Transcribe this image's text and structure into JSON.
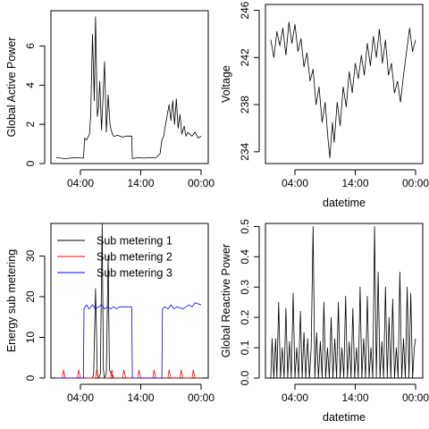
{
  "chart_data": [
    {
      "type": "line",
      "ylabel": "Global Active Power",
      "xlabel": "",
      "x_ticks": [
        "04:00",
        "14:00",
        "00:00"
      ],
      "y_ticks": [
        "0",
        "2",
        "4",
        "6"
      ],
      "ylim": [
        0,
        7.8
      ],
      "series": [
        {
          "color": "#000000",
          "x": [
            0.0,
            1.5,
            3.0,
            4.5,
            4.7,
            5.0,
            5.5,
            5.7,
            6.0,
            6.3,
            6.5,
            6.8,
            7.0,
            7.2,
            7.5,
            7.8,
            8.0,
            8.3,
            8.6,
            8.9,
            9.1,
            9.3,
            9.5,
            9.8,
            10.1,
            10.5,
            11.0,
            11.5,
            12.0,
            12.5,
            12.6,
            13.5,
            14.5,
            15.5,
            16.5,
            17.2,
            17.5,
            17.8,
            18.0,
            18.4,
            18.7,
            19.0,
            19.3,
            19.6,
            19.9,
            20.2,
            20.5,
            20.8,
            21.2,
            21.5,
            21.8,
            22.1,
            22.5,
            23.0,
            23.5,
            24.0
          ],
          "values": [
            0.3,
            0.25,
            0.3,
            0.28,
            1.3,
            1.2,
            1.5,
            2.5,
            6.6,
            3.2,
            7.5,
            2.4,
            2.9,
            4.2,
            1.7,
            3.8,
            5.2,
            1.6,
            3.5,
            2.0,
            1.7,
            1.5,
            1.4,
            1.4,
            1.45,
            1.4,
            1.35,
            1.4,
            1.4,
            1.4,
            0.25,
            0.3,
            0.28,
            0.3,
            0.3,
            0.5,
            1.2,
            1.4,
            1.8,
            2.5,
            3.0,
            2.2,
            3.2,
            2.0,
            3.3,
            1.8,
            2.5,
            1.5,
            1.9,
            1.4,
            1.6,
            1.5,
            1.4,
            1.6,
            1.3,
            1.4
          ]
        }
      ]
    },
    {
      "type": "line",
      "ylabel": "Voltage",
      "xlabel": "datetime",
      "x_ticks": [
        "04:00",
        "14:00",
        "00:00"
      ],
      "y_ticks": [
        "234",
        "238",
        "242",
        "246"
      ],
      "ylim": [
        233,
        246.5
      ],
      "series": [
        {
          "color": "#000000",
          "x": [
            0.0,
            0.5,
            1.0,
            1.5,
            2.0,
            2.5,
            3.0,
            3.5,
            4.0,
            4.5,
            5.0,
            5.5,
            6.0,
            6.5,
            7.0,
            7.5,
            8.0,
            8.5,
            9.0,
            9.5,
            9.8,
            10.2,
            10.5,
            11.0,
            11.5,
            12.0,
            12.5,
            13.0,
            13.5,
            14.0,
            14.5,
            15.0,
            15.5,
            16.0,
            16.5,
            17.0,
            17.5,
            18.0,
            18.5,
            19.0,
            19.5,
            20.0,
            20.5,
            21.0,
            21.5,
            22.0,
            22.5,
            23.0,
            23.5,
            24.0
          ],
          "values": [
            243.5,
            242.0,
            244.2,
            243.0,
            244.5,
            242.2,
            245.0,
            243.2,
            244.8,
            242.5,
            243.6,
            241.2,
            242.4,
            240.0,
            241.0,
            238.0,
            239.5,
            236.5,
            238.2,
            235.0,
            233.5,
            236.5,
            234.8,
            238.2,
            236.2,
            239.5,
            237.8,
            240.8,
            239.0,
            241.5,
            240.2,
            242.2,
            240.5,
            243.2,
            241.3,
            243.8,
            242.0,
            244.4,
            241.5,
            243.5,
            240.5,
            241.5,
            239.0,
            240.0,
            238.2,
            240.5,
            242.5,
            244.5,
            242.5,
            243.5
          ]
        }
      ]
    },
    {
      "type": "line",
      "ylabel": "Energy sub metering",
      "xlabel": "",
      "x_ticks": [
        "04:00",
        "14:00",
        "00:00"
      ],
      "y_ticks": [
        "0",
        "10",
        "20",
        "30"
      ],
      "ylim": [
        0,
        38
      ],
      "legend": {
        "placement": "top-left",
        "entries": [
          "Sub metering 1",
          "Sub metering 2",
          "Sub metering 3"
        ]
      },
      "series": [
        {
          "name": "Sub metering 1",
          "color": "#000000",
          "x": [
            0.0,
            6.0,
            6.2,
            6.5,
            6.8,
            7.0,
            7.3,
            7.6,
            7.8,
            8.0,
            8.3,
            8.6,
            8.8,
            9.1,
            9.5,
            24.0
          ],
          "values": [
            0,
            0,
            1,
            22,
            1,
            0,
            1,
            38,
            2,
            0,
            1,
            30,
            2,
            1,
            0,
            0
          ]
        },
        {
          "name": "Sub metering 2",
          "color": "#ff0000",
          "x": [
            0.0,
            1.0,
            1.2,
            1.5,
            3.5,
            3.7,
            4.0,
            6.5,
            6.7,
            7.0,
            9.0,
            9.2,
            9.5,
            11.0,
            11.2,
            11.5,
            13.5,
            13.7,
            14.0,
            16.0,
            16.2,
            16.5,
            18.5,
            18.7,
            19.0,
            20.5,
            20.7,
            21.0,
            22.5,
            22.7,
            23.0,
            24.0
          ],
          "values": [
            0,
            0,
            2,
            0,
            0,
            2,
            0,
            0,
            2,
            0,
            0,
            2,
            0,
            0,
            2,
            0,
            0,
            2,
            0,
            0,
            2,
            0,
            0,
            2,
            0,
            0,
            2,
            0,
            0,
            2,
            0,
            0
          ]
        },
        {
          "name": "Sub metering 3",
          "color": "#0000ff",
          "x": [
            0.0,
            4.5,
            4.6,
            5.0,
            5.4,
            6.0,
            6.5,
            7.0,
            7.5,
            8.0,
            8.5,
            9.0,
            9.5,
            10.0,
            10.5,
            11.0,
            11.5,
            12.5,
            12.6,
            17.5,
            17.6,
            18.0,
            18.5,
            19.0,
            19.5,
            20.0,
            21.0,
            22.0,
            22.5,
            23.0,
            24.0
          ],
          "values": [
            0,
            0,
            17,
            18,
            17,
            18,
            17,
            17.5,
            18,
            17,
            17.5,
            17,
            17.5,
            17,
            17.5,
            17.5,
            17.5,
            17.5,
            0,
            0,
            17,
            17.5,
            17,
            18,
            17,
            17.5,
            17,
            18,
            17.5,
            18.5,
            18
          ]
        }
      ]
    },
    {
      "type": "line",
      "ylabel": "Global Reactive Power",
      "xlabel": "datetime",
      "x_ticks": [
        "04:00",
        "14:00",
        "00:00"
      ],
      "y_ticks": [
        "0.0",
        "0.1",
        "0.2",
        "0.3",
        "0.4",
        "0.5"
      ],
      "ylim": [
        0,
        0.51
      ],
      "series": [
        {
          "color": "#000000",
          "x": [
            0.0,
            0.2,
            0.5,
            0.8,
            1.0,
            1.3,
            1.6,
            1.9,
            2.2,
            2.5,
            2.8,
            3.1,
            3.4,
            3.7,
            4.0,
            4.3,
            4.6,
            4.9,
            5.2,
            5.5,
            5.8,
            6.1,
            6.4,
            6.7,
            7.0,
            7.3,
            7.6,
            7.9,
            8.2,
            8.5,
            8.8,
            9.1,
            9.4,
            9.7,
            10.0,
            10.3,
            10.6,
            10.9,
            11.2,
            11.5,
            11.8,
            12.1,
            12.4,
            12.7,
            13.0,
            13.3,
            13.6,
            13.9,
            14.2,
            14.5,
            14.8,
            15.1,
            15.4,
            15.7,
            16.0,
            16.3,
            16.6,
            16.9,
            17.2,
            17.5,
            17.8,
            18.1,
            18.4,
            18.7,
            19.0,
            19.3,
            19.6,
            19.9,
            20.2,
            20.5,
            20.8,
            21.1,
            21.4,
            21.7,
            22.0,
            22.3,
            22.6,
            22.9,
            23.2,
            23.5,
            23.8,
            24.0
          ],
          "values": [
            0.0,
            0.13,
            0.0,
            0.13,
            0.0,
            0.25,
            0.0,
            0.1,
            0.0,
            0.23,
            0.0,
            0.12,
            0.0,
            0.28,
            0.0,
            0.1,
            0.0,
            0.22,
            0.0,
            0.15,
            0.0,
            0.13,
            0.0,
            0.1,
            0.5,
            0.0,
            0.15,
            0.0,
            0.12,
            0.0,
            0.25,
            0.0,
            0.1,
            0.0,
            0.2,
            0.0,
            0.13,
            0.0,
            0.25,
            0.0,
            0.1,
            0.0,
            0.27,
            0.0,
            0.12,
            0.0,
            0.23,
            0.0,
            0.1,
            0.0,
            0.3,
            0.0,
            0.13,
            0.0,
            0.27,
            0.0,
            0.1,
            0.0,
            0.5,
            0.0,
            0.35,
            0.0,
            0.12,
            0.0,
            0.3,
            0.0,
            0.2,
            0.0,
            0.26,
            0.0,
            0.1,
            0.0,
            0.35,
            0.0,
            0.13,
            0.0,
            0.3,
            0.0,
            0.28,
            0.0,
            0.1,
            0.13
          ]
        }
      ]
    }
  ]
}
